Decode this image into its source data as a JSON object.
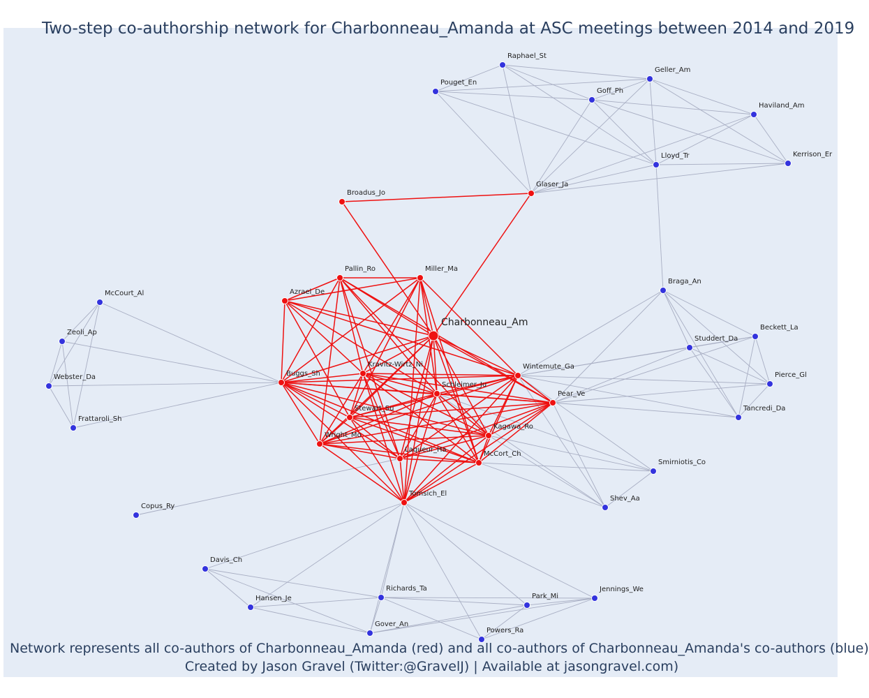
{
  "title": "Two-step co-authorship network for Charbonneau_Amanda at ASC meetings between 2014 and 2019",
  "footer": {
    "line1": "Network represents all co-authors of Charbonneau_Amanda (red) and all co-authors of Charbonneau_Amanda's co-authors (blue)",
    "line2": "Created by Jason Gravel (Twitter:@GravelJ) | Available at jasongravel.com)"
  },
  "colors": {
    "first_step": "#ee1111",
    "second_step": "#3333dd",
    "edge_first": "#ee1111",
    "edge_second": "#a8aec3",
    "background": "#e5ecf6"
  },
  "nodes": [
    {
      "id": "Charbonneau_Am",
      "label": "Charbonneau_Am",
      "group": "focal"
    },
    {
      "id": "Broadus_Jo",
      "label": "Broadus_Jo",
      "group": "first"
    },
    {
      "id": "Glaser_Ja",
      "label": "Glaser_Ja",
      "group": "first"
    },
    {
      "id": "Pallin_Ro",
      "label": "Pallin_Ro",
      "group": "first"
    },
    {
      "id": "Miller_Ma",
      "label": "Miller_Ma",
      "group": "first"
    },
    {
      "id": "Azrael_De",
      "label": "Azrael_De",
      "group": "first"
    },
    {
      "id": "Buggs_Sh",
      "label": "Buggs_Sh",
      "group": "first"
    },
    {
      "id": "Kravitz-Wirtz_Ni",
      "label": "Kravitz-Wirtz_Ni",
      "group": "first"
    },
    {
      "id": "Wintemute_Ga",
      "label": "Wintemute_Ga",
      "group": "first"
    },
    {
      "id": "Schleimer_Ju",
      "label": "Schleimer_Ju",
      "group": "first"
    },
    {
      "id": "Pear_Ve",
      "label": "Pear_Ve",
      "group": "first"
    },
    {
      "id": "Stewart_Su",
      "label": "Stewart_Su",
      "group": "first"
    },
    {
      "id": "Wright_Mo",
      "label": "Wright_Mo",
      "group": "first"
    },
    {
      "id": "Kagawa_Ro",
      "label": "Kagawa_Ro",
      "group": "first"
    },
    {
      "id": "Laqueur_Ha",
      "label": "Laqueur_Ha",
      "group": "first"
    },
    {
      "id": "McCort_Ch",
      "label": "McCort_Ch",
      "group": "first"
    },
    {
      "id": "Tomsich_El",
      "label": "Tomsich_El",
      "group": "first"
    },
    {
      "id": "Raphael_St",
      "label": "Raphael_St",
      "group": "second"
    },
    {
      "id": "Pouget_En",
      "label": "Pouget_En",
      "group": "second"
    },
    {
      "id": "Geller_Am",
      "label": "Geller_Am",
      "group": "second"
    },
    {
      "id": "Goff_Ph",
      "label": "Goff_Ph",
      "group": "second"
    },
    {
      "id": "Haviland_Am",
      "label": "Haviland_Am",
      "group": "second"
    },
    {
      "id": "Lloyd_Tr",
      "label": "Lloyd_Tr",
      "group": "second"
    },
    {
      "id": "Kerrison_Er",
      "label": "Kerrison_Er",
      "group": "second"
    },
    {
      "id": "Braga_An",
      "label": "Braga_An",
      "group": "second"
    },
    {
      "id": "Beckett_La",
      "label": "Beckett_La",
      "group": "second"
    },
    {
      "id": "Studdert_Da",
      "label": "Studdert_Da",
      "group": "second"
    },
    {
      "id": "Pierce_Gl",
      "label": "Pierce_Gl",
      "group": "second"
    },
    {
      "id": "Tancredi_Da",
      "label": "Tancredi_Da",
      "group": "second"
    },
    {
      "id": "Smirniotis_Co",
      "label": "Smirniotis_Co",
      "group": "second"
    },
    {
      "id": "Shev_Aa",
      "label": "Shev_Aa",
      "group": "second"
    },
    {
      "id": "McCourt_Al",
      "label": "McCourt_Al",
      "group": "second"
    },
    {
      "id": "Zeoli_Ap",
      "label": "Zeoli_Ap",
      "group": "second"
    },
    {
      "id": "Webster_Da",
      "label": "Webster_Da",
      "group": "second"
    },
    {
      "id": "Frattaroli_Sh",
      "label": "Frattaroli_Sh",
      "group": "second"
    },
    {
      "id": "Copus_Ry",
      "label": "Copus_Ry",
      "group": "second"
    },
    {
      "id": "Davis_Ch",
      "label": "Davis_Ch",
      "group": "second"
    },
    {
      "id": "Hansen_Je",
      "label": "Hansen_Je",
      "group": "second"
    },
    {
      "id": "Richards_Ta",
      "label": "Richards_Ta",
      "group": "second"
    },
    {
      "id": "Gover_An",
      "label": "Gover_An",
      "group": "second"
    },
    {
      "id": "Park_Mi",
      "label": "Park_Mi",
      "group": "second"
    },
    {
      "id": "Jennings_We",
      "label": "Jennings_We",
      "group": "second"
    },
    {
      "id": "Powers_Ra",
      "label": "Powers_Ra",
      "group": "second"
    }
  ],
  "edges": [
    [
      "Broadus_Jo",
      "Glaser_Ja"
    ],
    [
      "Broadus_Jo",
      "Charbonneau_Am"
    ],
    [
      "Glaser_Ja",
      "Charbonneau_Am"
    ],
    [
      "Pallin_Ro",
      "Miller_Ma"
    ],
    [
      "Pallin_Ro",
      "Azrael_De"
    ],
    [
      "Miller_Ma",
      "Azrael_De"
    ],
    [
      "Charbonneau_Am",
      "Pallin_Ro"
    ],
    [
      "Charbonneau_Am",
      "Miller_Ma"
    ],
    [
      "Charbonneau_Am",
      "Azrael_De"
    ],
    [
      "Charbonneau_Am",
      "Buggs_Sh"
    ],
    [
      "Charbonneau_Am",
      "Kravitz-Wirtz_Ni"
    ],
    [
      "Charbonneau_Am",
      "Wintemute_Ga"
    ],
    [
      "Charbonneau_Am",
      "Schleimer_Ju"
    ],
    [
      "Charbonneau_Am",
      "Pear_Ve"
    ],
    [
      "Charbonneau_Am",
      "Stewart_Su"
    ],
    [
      "Charbonneau_Am",
      "Wright_Mo"
    ],
    [
      "Charbonneau_Am",
      "Kagawa_Ro"
    ],
    [
      "Charbonneau_Am",
      "Laqueur_Ha"
    ],
    [
      "Charbonneau_Am",
      "McCort_Ch"
    ],
    [
      "Charbonneau_Am",
      "Tomsich_El"
    ],
    [
      "Azrael_De",
      "Buggs_Sh"
    ],
    [
      "Azrael_De",
      "Kravitz-Wirtz_Ni"
    ],
    [
      "Azrael_De",
      "Wintemute_Ga"
    ],
    [
      "Azrael_De",
      "Schleimer_Ju"
    ],
    [
      "Azrael_De",
      "Stewart_Su"
    ],
    [
      "Pallin_Ro",
      "Buggs_Sh"
    ],
    [
      "Pallin_Ro",
      "Kravitz-Wirtz_Ni"
    ],
    [
      "Pallin_Ro",
      "Schleimer_Ju"
    ],
    [
      "Pallin_Ro",
      "Pear_Ve"
    ],
    [
      "Pallin_Ro",
      "Wright_Mo"
    ],
    [
      "Pallin_Ro",
      "Kagawa_Ro"
    ],
    [
      "Pallin_Ro",
      "Laqueur_Ha"
    ],
    [
      "Miller_Ma",
      "Buggs_Sh"
    ],
    [
      "Miller_Ma",
      "Kravitz-Wirtz_Ni"
    ],
    [
      "Miller_Ma",
      "Wintemute_Ga"
    ],
    [
      "Miller_Ma",
      "Schleimer_Ju"
    ],
    [
      "Miller_Ma",
      "Stewart_Su"
    ],
    [
      "Miller_Ma",
      "Tomsich_El"
    ],
    [
      "Miller_Ma",
      "McCort_Ch"
    ],
    [
      "Buggs_Sh",
      "Kravitz-Wirtz_Ni"
    ],
    [
      "Buggs_Sh",
      "Wintemute_Ga"
    ],
    [
      "Buggs_Sh",
      "Schleimer_Ju"
    ],
    [
      "Buggs_Sh",
      "Pear_Ve"
    ],
    [
      "Buggs_Sh",
      "Stewart_Su"
    ],
    [
      "Buggs_Sh",
      "Wright_Mo"
    ],
    [
      "Buggs_Sh",
      "Kagawa_Ro"
    ],
    [
      "Buggs_Sh",
      "Laqueur_Ha"
    ],
    [
      "Buggs_Sh",
      "McCort_Ch"
    ],
    [
      "Buggs_Sh",
      "Tomsich_El"
    ],
    [
      "Kravitz-Wirtz_Ni",
      "Wintemute_Ga"
    ],
    [
      "Kravitz-Wirtz_Ni",
      "Schleimer_Ju"
    ],
    [
      "Kravitz-Wirtz_Ni",
      "Pear_Ve"
    ],
    [
      "Kravitz-Wirtz_Ni",
      "Stewart_Su"
    ],
    [
      "Kravitz-Wirtz_Ni",
      "Wright_Mo"
    ],
    [
      "Kravitz-Wirtz_Ni",
      "Kagawa_Ro"
    ],
    [
      "Kravitz-Wirtz_Ni",
      "Laqueur_Ha"
    ],
    [
      "Kravitz-Wirtz_Ni",
      "McCort_Ch"
    ],
    [
      "Kravitz-Wirtz_Ni",
      "Tomsich_El"
    ],
    [
      "Wintemute_Ga",
      "Schleimer_Ju"
    ],
    [
      "Wintemute_Ga",
      "Pear_Ve"
    ],
    [
      "Wintemute_Ga",
      "Stewart_Su"
    ],
    [
      "Wintemute_Ga",
      "Wright_Mo"
    ],
    [
      "Wintemute_Ga",
      "Kagawa_Ro"
    ],
    [
      "Wintemute_Ga",
      "Laqueur_Ha"
    ],
    [
      "Wintemute_Ga",
      "McCort_Ch"
    ],
    [
      "Wintemute_Ga",
      "Tomsich_El"
    ],
    [
      "Schleimer_Ju",
      "Pear_Ve"
    ],
    [
      "Schleimer_Ju",
      "Stewart_Su"
    ],
    [
      "Schleimer_Ju",
      "Wright_Mo"
    ],
    [
      "Schleimer_Ju",
      "Kagawa_Ro"
    ],
    [
      "Schleimer_Ju",
      "Laqueur_Ha"
    ],
    [
      "Schleimer_Ju",
      "McCort_Ch"
    ],
    [
      "Schleimer_Ju",
      "Tomsich_El"
    ],
    [
      "Pear_Ve",
      "Stewart_Su"
    ],
    [
      "Pear_Ve",
      "Wright_Mo"
    ],
    [
      "Pear_Ve",
      "Kagawa_Ro"
    ],
    [
      "Pear_Ve",
      "Laqueur_Ha"
    ],
    [
      "Pear_Ve",
      "McCort_Ch"
    ],
    [
      "Pear_Ve",
      "Tomsich_El"
    ],
    [
      "Stewart_Su",
      "Wright_Mo"
    ],
    [
      "Stewart_Su",
      "Kagawa_Ro"
    ],
    [
      "Stewart_Su",
      "Laqueur_Ha"
    ],
    [
      "Stewart_Su",
      "McCort_Ch"
    ],
    [
      "Stewart_Su",
      "Tomsich_El"
    ],
    [
      "Wright_Mo",
      "Kagawa_Ro"
    ],
    [
      "Wright_Mo",
      "Laqueur_Ha"
    ],
    [
      "Wright_Mo",
      "McCort_Ch"
    ],
    [
      "Wright_Mo",
      "Tomsich_El"
    ],
    [
      "Kagawa_Ro",
      "Laqueur_Ha"
    ],
    [
      "Kagawa_Ro",
      "McCort_Ch"
    ],
    [
      "Kagawa_Ro",
      "Tomsich_El"
    ],
    [
      "Laqueur_Ha",
      "McCort_Ch"
    ],
    [
      "Laqueur_Ha",
      "Tomsich_El"
    ],
    [
      "McCort_Ch",
      "Tomsich_El"
    ],
    [
      "Glaser_Ja",
      "Raphael_St"
    ],
    [
      "Glaser_Ja",
      "Pouget_En"
    ],
    [
      "Glaser_Ja",
      "Geller_Am"
    ],
    [
      "Glaser_Ja",
      "Goff_Ph"
    ],
    [
      "Glaser_Ja",
      "Haviland_Am"
    ],
    [
      "Glaser_Ja",
      "Lloyd_Tr"
    ],
    [
      "Glaser_Ja",
      "Kerrison_Er"
    ],
    [
      "Raphael_St",
      "Pouget_En"
    ],
    [
      "Raphael_St",
      "Geller_Am"
    ],
    [
      "Raphael_St",
      "Goff_Ph"
    ],
    [
      "Raphael_St",
      "Lloyd_Tr"
    ],
    [
      "Pouget_En",
      "Geller_Am"
    ],
    [
      "Pouget_En",
      "Goff_Ph"
    ],
    [
      "Pouget_En",
      "Lloyd_Tr"
    ],
    [
      "Geller_Am",
      "Goff_Ph"
    ],
    [
      "Geller_Am",
      "Haviland_Am"
    ],
    [
      "Geller_Am",
      "Lloyd_Tr"
    ],
    [
      "Geller_Am",
      "Kerrison_Er"
    ],
    [
      "Goff_Ph",
      "Haviland_Am"
    ],
    [
      "Goff_Ph",
      "Lloyd_Tr"
    ],
    [
      "Goff_Ph",
      "Kerrison_Er"
    ],
    [
      "Haviland_Am",
      "Lloyd_Tr"
    ],
    [
      "Haviland_Am",
      "Kerrison_Er"
    ],
    [
      "Lloyd_Tr",
      "Kerrison_Er"
    ],
    [
      "Lloyd_Tr",
      "Braga_An"
    ],
    [
      "Braga_An",
      "Wintemute_Ga"
    ],
    [
      "Braga_An",
      "Pear_Ve"
    ],
    [
      "Braga_An",
      "Beckett_La"
    ],
    [
      "Braga_An",
      "Studdert_Da"
    ],
    [
      "Braga_An",
      "Pierce_Gl"
    ],
    [
      "Braga_An",
      "Tancredi_Da"
    ],
    [
      "Studdert_Da",
      "Wintemute_Ga"
    ],
    [
      "Studdert_Da",
      "Pear_Ve"
    ],
    [
      "Studdert_Da",
      "Beckett_La"
    ],
    [
      "Studdert_Da",
      "Pierce_Gl"
    ],
    [
      "Studdert_Da",
      "Tancredi_Da"
    ],
    [
      "Beckett_La",
      "Wintemute_Ga"
    ],
    [
      "Beckett_La",
      "Pierce_Gl"
    ],
    [
      "Beckett_La",
      "Tancredi_Da"
    ],
    [
      "Beckett_La",
      "Pear_Ve"
    ],
    [
      "Pierce_Gl",
      "Wintemute_Ga"
    ],
    [
      "Pierce_Gl",
      "Pear_Ve"
    ],
    [
      "Pierce_Gl",
      "Tancredi_Da"
    ],
    [
      "Tancredi_Da",
      "Wintemute_Ga"
    ],
    [
      "Tancredi_Da",
      "Pear_Ve"
    ],
    [
      "Smirniotis_Co",
      "Wintemute_Ga"
    ],
    [
      "Smirniotis_Co",
      "Kagawa_Ro"
    ],
    [
      "Smirniotis_Co",
      "McCort_Ch"
    ],
    [
      "Smirniotis_Co",
      "Schleimer_Ju"
    ],
    [
      "Smirniotis_Co",
      "Shev_Aa"
    ],
    [
      "Shev_Aa",
      "Wintemute_Ga"
    ],
    [
      "Shev_Aa",
      "Kagawa_Ro"
    ],
    [
      "Shev_Aa",
      "McCort_Ch"
    ],
    [
      "Shev_Aa",
      "Schleimer_Ju"
    ],
    [
      "Shev_Aa",
      "Pear_Ve"
    ],
    [
      "Buggs_Sh",
      "McCourt_Al"
    ],
    [
      "Buggs_Sh",
      "Zeoli_Ap"
    ],
    [
      "Buggs_Sh",
      "Webster_Da"
    ],
    [
      "Buggs_Sh",
      "Frattaroli_Sh"
    ],
    [
      "McCourt_Al",
      "Zeoli_Ap"
    ],
    [
      "McCourt_Al",
      "Webster_Da"
    ],
    [
      "McCourt_Al",
      "Frattaroli_Sh"
    ],
    [
      "Zeoli_Ap",
      "Webster_Da"
    ],
    [
      "Zeoli_Ap",
      "Frattaroli_Sh"
    ],
    [
      "Webster_Da",
      "Frattaroli_Sh"
    ],
    [
      "Copus_Ry",
      "Laqueur_Ha"
    ],
    [
      "Tomsich_El",
      "Davis_Ch"
    ],
    [
      "Tomsich_El",
      "Hansen_Je"
    ],
    [
      "Tomsich_El",
      "Richards_Ta"
    ],
    [
      "Tomsich_El",
      "Gover_An"
    ],
    [
      "Tomsich_El",
      "Park_Mi"
    ],
    [
      "Tomsich_El",
      "Jennings_We"
    ],
    [
      "Tomsich_El",
      "Powers_Ra"
    ],
    [
      "Davis_Ch",
      "Hansen_Je"
    ],
    [
      "Davis_Ch",
      "Richards_Ta"
    ],
    [
      "Davis_Ch",
      "Gover_An"
    ],
    [
      "Hansen_Je",
      "Richards_Ta"
    ],
    [
      "Hansen_Je",
      "Gover_An"
    ],
    [
      "Richards_Ta",
      "Gover_An"
    ],
    [
      "Richards_Ta",
      "Park_Mi"
    ],
    [
      "Richards_Ta",
      "Jennings_We"
    ],
    [
      "Richards_Ta",
      "Powers_Ra"
    ],
    [
      "Gover_An",
      "Park_Mi"
    ],
    [
      "Gover_An",
      "Jennings_We"
    ],
    [
      "Park_Mi",
      "Jennings_We"
    ],
    [
      "Park_Mi",
      "Powers_Ra"
    ],
    [
      "Jennings_We",
      "Powers_Ra"
    ]
  ]
}
